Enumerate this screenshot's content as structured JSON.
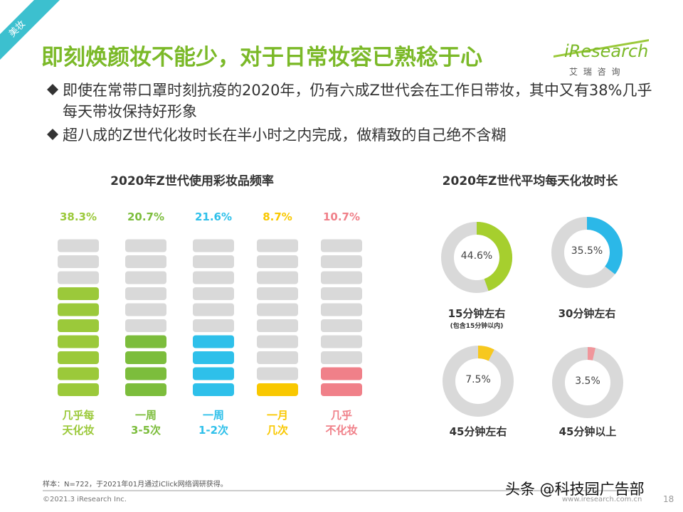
{
  "tag": "美妆",
  "title": "即刻焕颜妆不能少，对于日常妆容已熟稔于心",
  "logo": {
    "name": "iResearch",
    "subtitle": "艾 瑞 咨 询"
  },
  "bullets": [
    "即使在常带口罩时刻抗疫的2020年，仍有六成Z世代会在工作日带妆，其中又有38%几乎每天带妆保持好形象",
    "超八成的Z世代化妆时长在半小时之内完成，做精致的自己绝不含糊"
  ],
  "chart_data": [
    {
      "type": "bar",
      "title": "2020年Z世代使用彩妆品频率",
      "categories": [
        "几乎每\n天化妆",
        "一周\n3-5次",
        "一周\n1-2次",
        "一月\n几次",
        "几乎\n不化妆"
      ],
      "values": [
        38.3,
        20.7,
        21.6,
        8.7,
        10.7
      ],
      "value_labels": [
        "38.3%",
        "20.7%",
        "21.6%",
        "8.7%",
        "10.7%"
      ],
      "colors": [
        "#9bc93a",
        "#7cbd3c",
        "#2ec0ea",
        "#f9c800",
        "#f08089"
      ],
      "ylim": [
        0,
        50
      ]
    },
    {
      "type": "donut",
      "title": "2020年Z世代平均每天化妆时长",
      "categories": [
        "15分钟左右",
        "30分钟左右",
        "45分钟左右",
        "45分钟以上"
      ],
      "annotation": "(包含15分钟以内)",
      "values": [
        44.6,
        35.5,
        7.5,
        3.5
      ],
      "value_labels": [
        "44.6%",
        "35.5%",
        "7.5%",
        "3.5%"
      ],
      "colors": [
        "#a6cf2e",
        "#2bb8e8",
        "#f7c81e",
        "#f0969b"
      ]
    }
  ],
  "footer": {
    "note": "样本：N=722，于2021年01月通过iClick网络调研获得。",
    "copyright": "©2021.3 iResearch Inc.",
    "url": "www.iresearch.com.cn",
    "page": "18",
    "watermark": "头条 @科技园广告部"
  }
}
